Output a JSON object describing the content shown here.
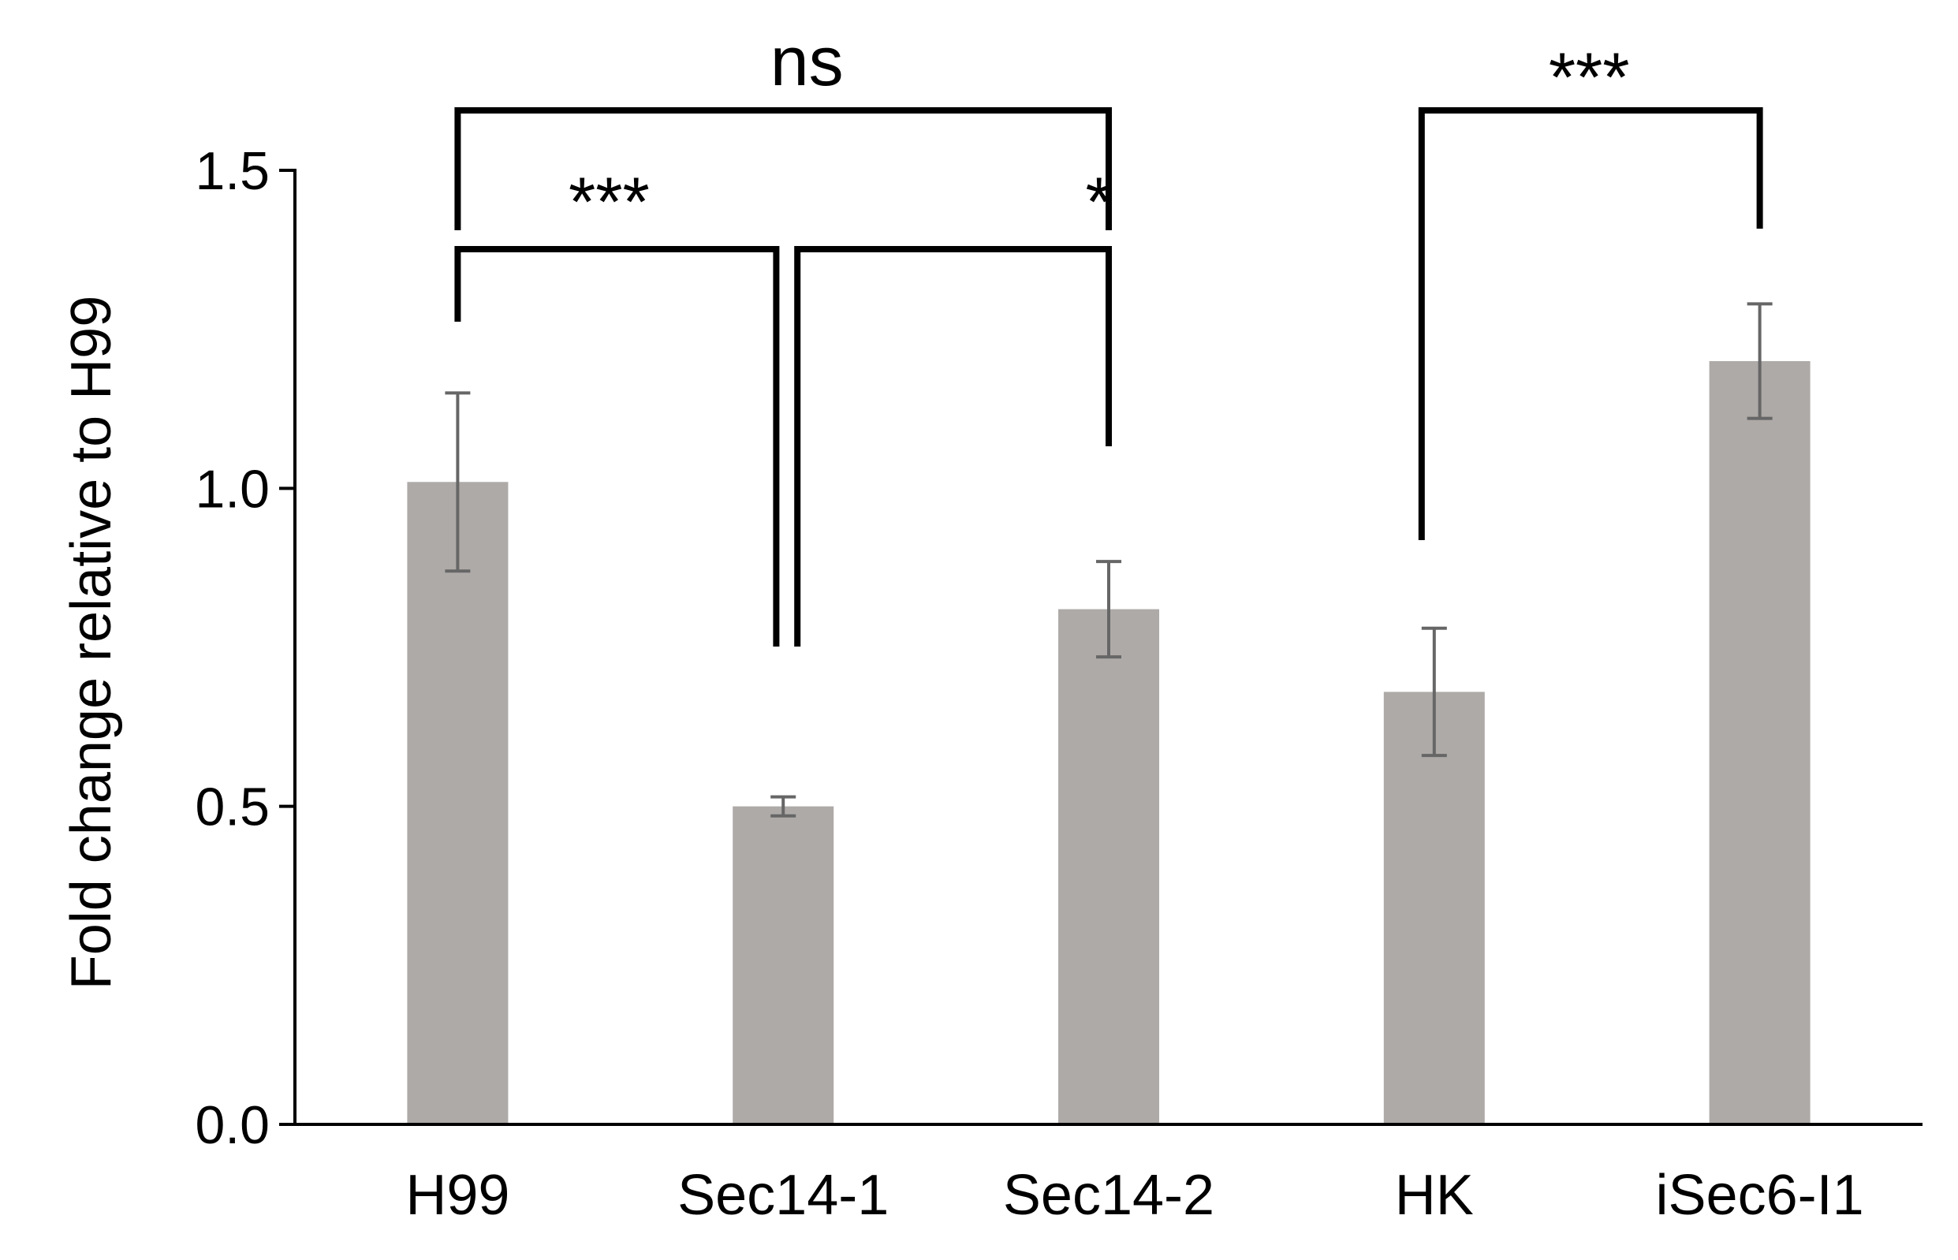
{
  "chart_data": {
    "type": "bar",
    "title": "",
    "xlabel": "",
    "ylabel": "Fold change relative to H99",
    "ylim": [
      0,
      1.5
    ],
    "yticks": [
      "0.0",
      "0.5",
      "1.0",
      "1.5"
    ],
    "categories": [
      "H99",
      "Sec14-1",
      "Sec14-2",
      "HK",
      "iSec6-I1"
    ],
    "values": [
      1.01,
      0.5,
      0.81,
      0.68,
      1.2
    ],
    "errors": [
      0.14,
      0.015,
      0.075,
      0.1,
      0.09
    ],
    "bar_color": "#aeaaa8",
    "error_color": "#666666",
    "grid": false,
    "legend": "none",
    "significance": [
      {
        "from": "H99",
        "to": "Sec14-2",
        "label": "ns"
      },
      {
        "from": "H99",
        "to": "Sec14-1",
        "label": "***"
      },
      {
        "from": "Sec14-1",
        "to": "Sec14-2",
        "label": "*"
      },
      {
        "from": "HK",
        "to": "iSec6-I1",
        "label": "***"
      }
    ]
  }
}
